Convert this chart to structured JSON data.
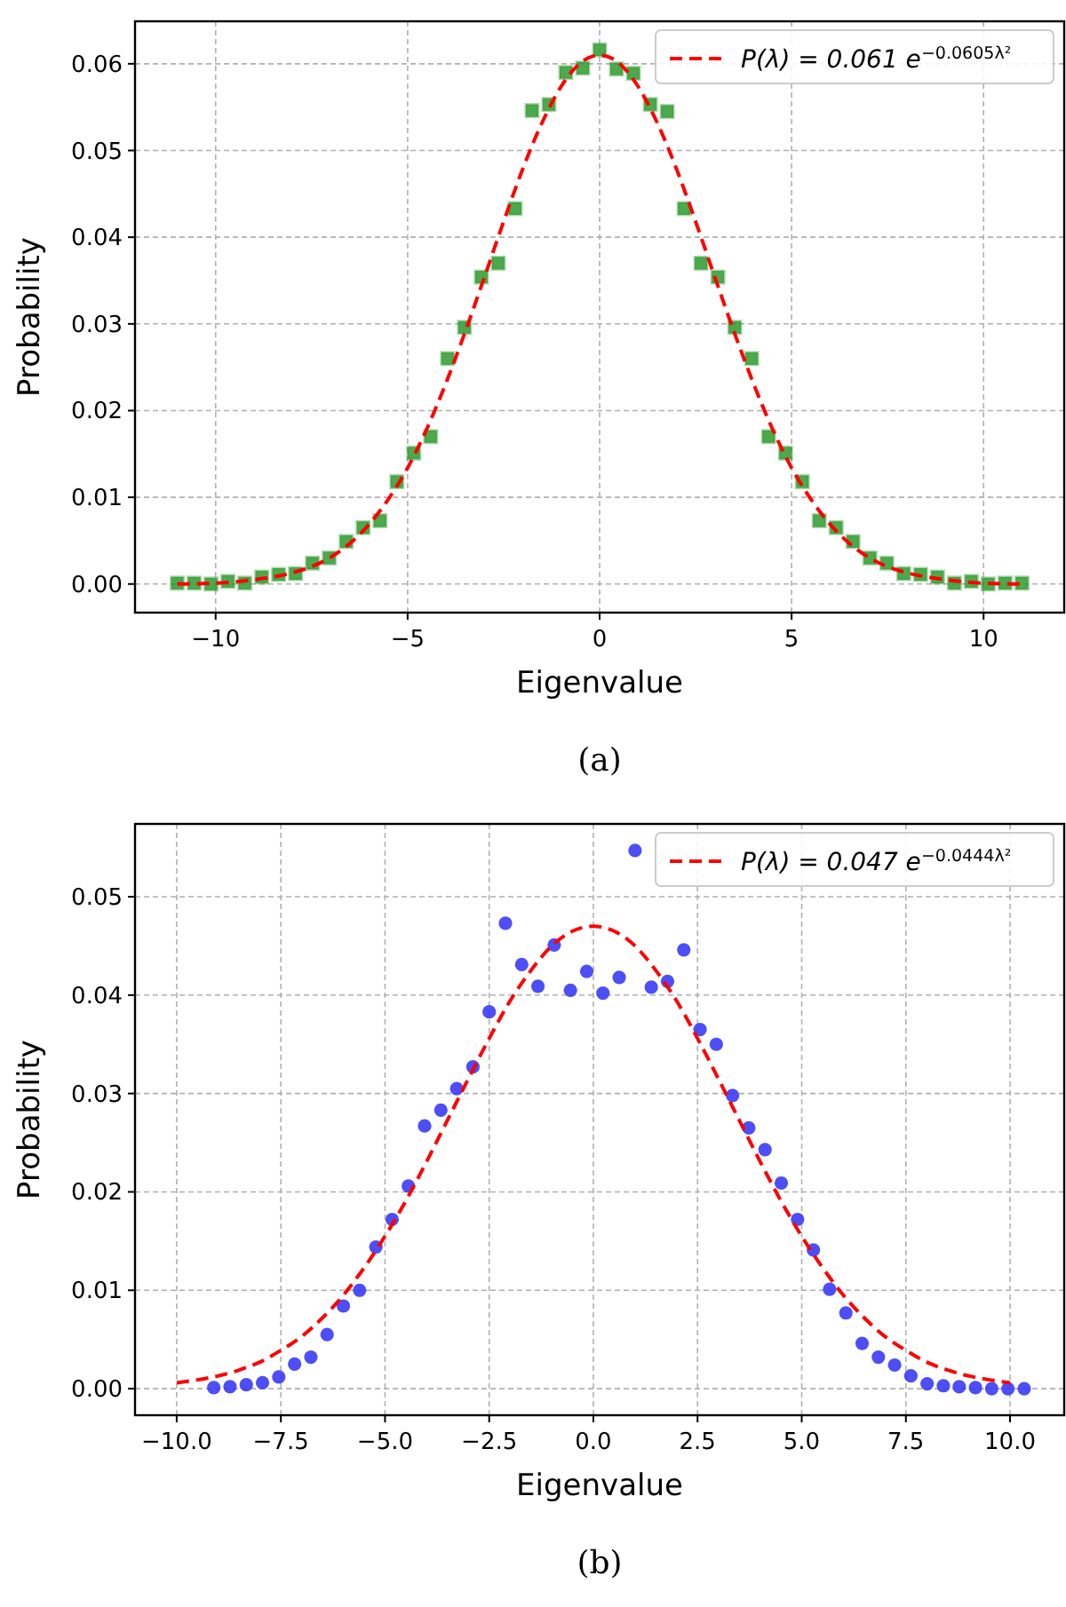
{
  "chart_data": [
    {
      "type": "scatter",
      "xlabel": "Eigenvalue",
      "ylabel": "Probability",
      "annotations": [
        "(a)"
      ],
      "xlim": [
        -12.1,
        12.1
      ],
      "ylim": [
        -0.0033,
        0.0649
      ],
      "xticks": [
        {
          "value": -10,
          "label": "−10"
        },
        {
          "value": -5,
          "label": "−5"
        },
        0,
        5,
        10
      ],
      "yticks": [
        {
          "value": 0,
          "label": "0.00"
        },
        {
          "value": 0.01,
          "label": "0.01"
        },
        {
          "value": 0.02,
          "label": "0.02"
        },
        {
          "value": 0.03,
          "label": "0.03"
        },
        {
          "value": 0.04,
          "label": "0.04"
        },
        {
          "value": 0.05,
          "label": "0.05"
        },
        {
          "value": 0.06,
          "label": "0.06"
        }
      ],
      "grid": true,
      "legend": "top right",
      "series": [
        {
          "marker": "square",
          "color": "#2e9a2e",
          "x": [
            -11,
            -10.56,
            -10.12,
            -9.68,
            -9.24,
            -8.8,
            -8.36,
            -7.92,
            -7.48,
            -7.04,
            -6.6,
            -6.16,
            -5.72,
            -5.28,
            -4.84,
            -4.4,
            -3.96,
            -3.52,
            -3.08,
            -2.64,
            -2.2,
            -1.76,
            -1.32,
            -0.88,
            -0.44,
            0,
            0.44,
            0.88,
            1.32,
            1.76,
            2.2,
            2.64,
            3.08,
            3.52,
            3.96,
            4.4,
            4.84,
            5.28,
            5.72,
            6.16,
            6.6,
            7.04,
            7.48,
            7.92,
            8.36,
            8.8,
            9.24,
            9.68,
            10.12,
            10.56,
            11
          ],
          "values": [
            0.0001,
            0.0001,
            0,
            0.0003,
            0.0001,
            0.0008,
            0.0011,
            0.0012,
            0.0024,
            0.003,
            0.0049,
            0.0065,
            0.0073,
            0.0118,
            0.0151,
            0.017,
            0.026,
            0.0296,
            0.0354,
            0.037,
            0.0433,
            0.0546,
            0.0553,
            0.059,
            0.0595,
            0.0616,
            0.0594,
            0.0589,
            0.0553,
            0.0545,
            0.0433,
            0.037,
            0.0354,
            0.0296,
            0.026,
            0.017,
            0.0151,
            0.0118,
            0.0073,
            0.0065,
            0.0049,
            0.003,
            0.0024,
            0.0012,
            0.0011,
            0.0008,
            0.0001,
            0.0003,
            0,
            0.0001,
            0.0001
          ]
        },
        {
          "type": "line",
          "name": "P(λ) = 0.061 e$^{−0.0605λ²}$",
          "color": "#ff0000",
          "line_style": "dashed",
          "marker": "none",
          "x": [
            -11,
            -10,
            -9,
            -8,
            -7.5,
            -7,
            -6.5,
            -6,
            -5.5,
            -5,
            -4.5,
            -4,
            -3.5,
            -3,
            -2.5,
            -2,
            -1.5,
            -1,
            -0.5,
            0,
            0.5,
            1,
            1.5,
            2,
            2.5,
            3,
            3.5,
            4,
            4.5,
            5,
            5.5,
            6,
            6.5,
            7,
            7.5,
            8,
            9,
            10,
            11
          ],
          "values": [
            0,
            0.0001,
            0.0005,
            0.0013,
            0.002,
            0.0031,
            0.0047,
            0.0069,
            0.0098,
            0.0134,
            0.0179,
            0.0232,
            0.0291,
            0.0354,
            0.0418,
            0.0479,
            0.0532,
            0.0574,
            0.0601,
            0.061,
            0.0601,
            0.0574,
            0.0532,
            0.0479,
            0.0418,
            0.0354,
            0.0291,
            0.0232,
            0.0179,
            0.0134,
            0.0098,
            0.0069,
            0.0047,
            0.0031,
            0.002,
            0.0013,
            0.0005,
            0.0001,
            0
          ]
        }
      ]
    },
    {
      "type": "scatter",
      "xlabel": "Eigenvalue",
      "ylabel": "Probability",
      "annotations": [
        "(b)"
      ],
      "xlim": [
        -11.0,
        11.3
      ],
      "ylim": [
        -0.0027,
        0.0574
      ],
      "xticks": [
        {
          "value": -10,
          "label": "−10.0"
        },
        {
          "value": -7.5,
          "label": "−7.5"
        },
        {
          "value": -5,
          "label": "−5.0"
        },
        {
          "value": -2.5,
          "label": "−2.5"
        },
        {
          "value": 0,
          "label": "0.0"
        },
        {
          "value": 2.5,
          "label": "2.5"
        },
        {
          "value": 5,
          "label": "5.0"
        },
        {
          "value": 7.5,
          "label": "7.5"
        },
        {
          "value": 10,
          "label": "10.0"
        }
      ],
      "yticks": [
        {
          "value": 0,
          "label": "0.00"
        },
        {
          "value": 0.01,
          "label": "0.01"
        },
        {
          "value": 0.02,
          "label": "0.02"
        },
        {
          "value": 0.03,
          "label": "0.03"
        },
        {
          "value": 0.04,
          "label": "0.04"
        },
        {
          "value": 0.05,
          "label": "0.05"
        }
      ],
      "grid": true,
      "legend": "top right",
      "series": [
        {
          "marker": "circle",
          "color": "#3b3bf5",
          "x": [
            -9.11,
            -8.72,
            -8.33,
            -7.94,
            -7.55,
            -7.17,
            -6.78,
            -6.39,
            -6.0,
            -5.61,
            -5.22,
            -4.83,
            -4.44,
            -4.05,
            -3.66,
            -3.28,
            -2.89,
            -2.5,
            -2.11,
            -1.72,
            -1.33,
            -0.94,
            -0.55,
            -0.16,
            0.23,
            0.62,
            1.0,
            1.39,
            1.78,
            2.17,
            2.56,
            2.95,
            3.34,
            3.73,
            4.12,
            4.51,
            4.9,
            5.28,
            5.67,
            6.06,
            6.45,
            6.84,
            7.23,
            7.62,
            8.01,
            8.4,
            8.78,
            9.17,
            9.56,
            9.95,
            10.34
          ],
          "values": [
            0.0001,
            0.0002,
            0.0004,
            0.0006,
            0.0012,
            0.0025,
            0.0032,
            0.0055,
            0.0084,
            0.01,
            0.0144,
            0.0172,
            0.0206,
            0.0267,
            0.0283,
            0.0305,
            0.0327,
            0.0383,
            0.0473,
            0.0431,
            0.0409,
            0.0451,
            0.0405,
            0.0424,
            0.0402,
            0.0418,
            0.0547,
            0.0408,
            0.0414,
            0.0446,
            0.0365,
            0.035,
            0.0298,
            0.0265,
            0.0243,
            0.0209,
            0.0172,
            0.0141,
            0.0101,
            0.0077,
            0.0046,
            0.0032,
            0.0024,
            0.0013,
            0.0005,
            0.0003,
            0.0002,
            0.0001,
            0,
            0,
            0
          ]
        },
        {
          "type": "line",
          "name": "P(λ) = 0.047 e$^{−0.0444λ²}$",
          "color": "#ff0000",
          "line_style": "dashed",
          "marker": "none",
          "x": [
            -10,
            -9.5,
            -9,
            -8.5,
            -8,
            -7.5,
            -7,
            -6.5,
            -6,
            -5.5,
            -5,
            -4.5,
            -4,
            -3.5,
            -3,
            -2.5,
            -2,
            -1.5,
            -1,
            -0.5,
            0,
            0.5,
            1,
            1.5,
            2,
            2.5,
            3,
            3.5,
            4,
            4.5,
            5,
            5.5,
            6,
            6.5,
            7,
            7.5,
            8,
            8.5,
            9,
            9.5,
            10
          ],
          "values": [
            0.0006,
            0.0009,
            0.0013,
            0.0019,
            0.0027,
            0.0039,
            0.0053,
            0.0072,
            0.0095,
            0.0123,
            0.0155,
            0.0191,
            0.0231,
            0.0273,
            0.0315,
            0.0356,
            0.0394,
            0.0425,
            0.045,
            0.0465,
            0.047,
            0.0465,
            0.045,
            0.0425,
            0.0394,
            0.0356,
            0.0315,
            0.0273,
            0.0231,
            0.0191,
            0.0155,
            0.0123,
            0.0095,
            0.0072,
            0.0053,
            0.0039,
            0.0027,
            0.0019,
            0.0013,
            0.0009,
            0.0006
          ]
        }
      ]
    }
  ]
}
